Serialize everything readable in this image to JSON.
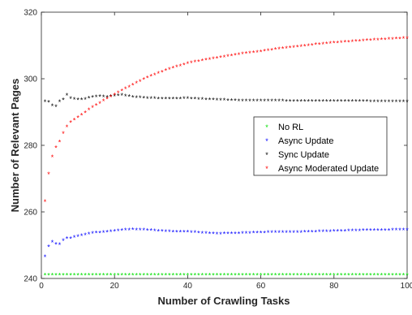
{
  "chart_data": {
    "type": "scatter",
    "xlabel": "Number of Crawling Tasks",
    "ylabel": "Number of Relevant Pages",
    "xlim": [
      0,
      100
    ],
    "ylim": [
      240,
      320
    ],
    "xticks": [
      0,
      20,
      40,
      60,
      80,
      100
    ],
    "yticks": [
      240,
      260,
      280,
      300,
      320
    ],
    "grid": false,
    "legend_placement": "center-right",
    "marker": "*",
    "series": [
      {
        "name": "No RL",
        "color": "#00e000",
        "points": [
          [
            1,
            241
          ],
          [
            10,
            241
          ],
          [
            20,
            241
          ],
          [
            30,
            241
          ],
          [
            40,
            241
          ],
          [
            50,
            241
          ],
          [
            60,
            241
          ],
          [
            70,
            241
          ],
          [
            80,
            241
          ],
          [
            90,
            241
          ],
          [
            100,
            241
          ]
        ]
      },
      {
        "name": "Async Update",
        "color": "#0000ff",
        "points": [
          [
            1,
            246.5
          ],
          [
            2,
            249.5
          ],
          [
            3,
            250.8
          ],
          [
            4,
            250.3
          ],
          [
            5,
            250.1
          ],
          [
            6,
            251.3
          ],
          [
            7,
            251.9
          ],
          [
            8,
            252
          ],
          [
            10,
            252.6
          ],
          [
            12,
            253.1
          ],
          [
            14,
            253.5
          ],
          [
            16,
            253.7
          ],
          [
            18,
            253.9
          ],
          [
            20,
            254.1
          ],
          [
            22,
            254.4
          ],
          [
            25,
            254.6
          ],
          [
            28,
            254.5
          ],
          [
            32,
            254.2
          ],
          [
            36,
            253.9
          ],
          [
            40,
            253.9
          ],
          [
            45,
            253.5
          ],
          [
            48,
            253.3
          ],
          [
            55,
            253.5
          ],
          [
            60,
            253.7
          ],
          [
            70,
            253.8
          ],
          [
            80,
            254.1
          ],
          [
            90,
            254.4
          ],
          [
            100,
            254.5
          ]
        ]
      },
      {
        "name": "Sync Update",
        "color": "#000000",
        "points": [
          [
            1,
            293
          ],
          [
            2,
            292.9
          ],
          [
            3,
            291.8
          ],
          [
            4,
            291.6
          ],
          [
            5,
            293
          ],
          [
            6,
            293.6
          ],
          [
            7,
            295
          ],
          [
            8,
            294
          ],
          [
            10,
            293.6
          ],
          [
            12,
            293.8
          ],
          [
            14,
            294.4
          ],
          [
            16,
            294.6
          ],
          [
            18,
            294.4
          ],
          [
            20,
            294.8
          ],
          [
            22,
            295
          ],
          [
            24,
            294.6
          ],
          [
            26,
            294.3
          ],
          [
            30,
            294
          ],
          [
            35,
            293.9
          ],
          [
            40,
            294
          ],
          [
            45,
            293.7
          ],
          [
            50,
            293.5
          ],
          [
            55,
            293.3
          ],
          [
            60,
            293.3
          ],
          [
            70,
            293.2
          ],
          [
            80,
            293.2
          ],
          [
            90,
            293.1
          ],
          [
            100,
            293
          ]
        ]
      },
      {
        "name": "Async Moderated Update",
        "color": "#ff0000",
        "points": [
          [
            1,
            263
          ],
          [
            2,
            271.3
          ],
          [
            3,
            276.5
          ],
          [
            4,
            279.3
          ],
          [
            5,
            281
          ],
          [
            6,
            283.5
          ],
          [
            7,
            285.5
          ],
          [
            8,
            286.8
          ],
          [
            10,
            288.3
          ],
          [
            12,
            289.8
          ],
          [
            14,
            291.3
          ],
          [
            16,
            292.6
          ],
          [
            18,
            293.9
          ],
          [
            20,
            295.1
          ],
          [
            22,
            296.3
          ],
          [
            25,
            298.1
          ],
          [
            28,
            299.7
          ],
          [
            30,
            300.7
          ],
          [
            35,
            302.8
          ],
          [
            40,
            304.5
          ],
          [
            45,
            305.6
          ],
          [
            50,
            306.5
          ],
          [
            55,
            307.4
          ],
          [
            60,
            308.1
          ],
          [
            65,
            308.9
          ],
          [
            70,
            309.5
          ],
          [
            75,
            310.2
          ],
          [
            80,
            310.7
          ],
          [
            85,
            311.1
          ],
          [
            90,
            311.5
          ],
          [
            95,
            311.8
          ],
          [
            100,
            312.1
          ]
        ]
      }
    ]
  }
}
